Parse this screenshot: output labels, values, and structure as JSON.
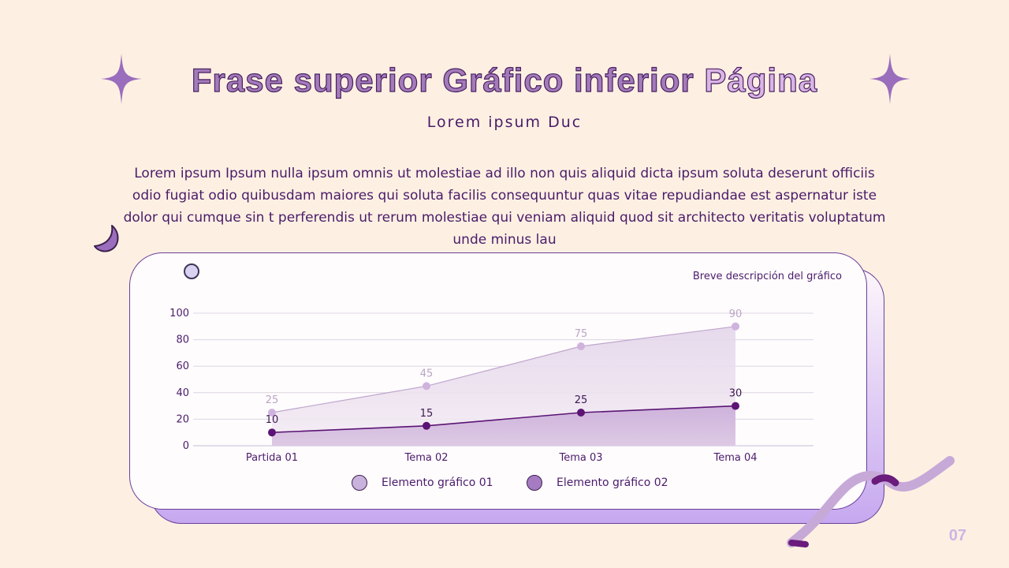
{
  "title": {
    "part1": "Frase superior Gráfico inferior ",
    "part2": "Página"
  },
  "subtitle": "Lorem ipsum Duc",
  "body": "Lorem ipsum Ipsum nulla ipsum omnis ut molestiae ad illo non quis aliquid dicta ipsum soluta deserunt officiis odio fugiat odio quibusdam maiores qui soluta facilis consequuntur quas vitae repudiandae est aspernatur iste dolor qui cumque sin t perferendis ut rerum molestiae qui veniam aliquid quod sit architecto veritatis voluptatum unde minus lau",
  "chart_description": "Breve descripción del gráfico",
  "page_number": "07",
  "colors": {
    "series1": "#c5a3d6",
    "series2": "#5b1475",
    "accent": "#9b6fbe",
    "text": "#4a1b6a"
  },
  "chart_data": {
    "type": "area",
    "categories": [
      "Partida 01",
      "Tema 02",
      "Tema 03",
      "Tema 04"
    ],
    "series": [
      {
        "name": "Elemento gráfico 01",
        "values": [
          25,
          45,
          75,
          90
        ]
      },
      {
        "name": "Elemento gráfico 02",
        "values": [
          10,
          15,
          25,
          30
        ]
      }
    ],
    "y_ticks": [
      0,
      20,
      40,
      60,
      80,
      100
    ],
    "ylim": [
      0,
      100
    ],
    "grid": true,
    "legend": "bottom",
    "data_labels": true
  }
}
